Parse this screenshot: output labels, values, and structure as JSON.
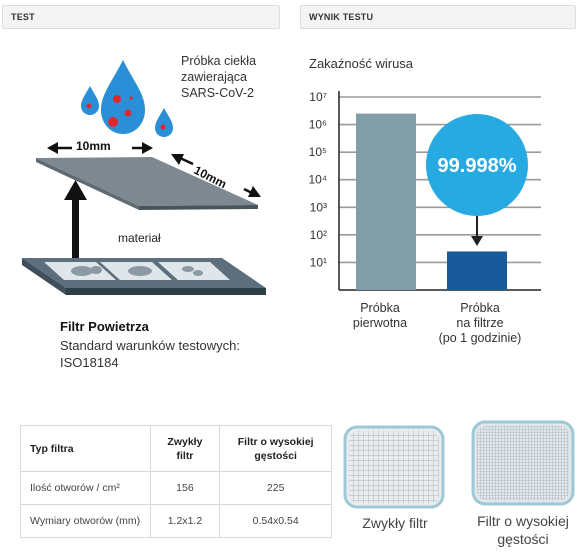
{
  "headers": {
    "test": "TEST",
    "result": "WYNIK TESTU"
  },
  "test_diagram": {
    "sample_label": [
      "Próbka ciekła",
      "zawierająca",
      "SARS-CoV-2"
    ],
    "dim_a": "10mm",
    "dim_b": "10mm",
    "material_label": "materiał",
    "filter_title": "Filtr Powietrza",
    "filter_standard_line1": "Standard warunków testowych:",
    "filter_standard_line2": "ISO18184"
  },
  "chart_data": {
    "type": "bar",
    "title": "Zakaźność wirusa",
    "y_scale": "log10",
    "ylim": [
      1,
      10000000
    ],
    "ytick_labels": [
      "10⁷",
      "10⁶",
      "10⁵",
      "10⁴",
      "10³",
      "10²",
      "10¹"
    ],
    "categories": [
      [
        "Próbka",
        "pierwotna"
      ],
      [
        "Próbka",
        "na filtrze",
        "(po 1 godzinie)"
      ]
    ],
    "values": [
      2500000,
      25
    ],
    "bar_colors": [
      "#7f9ea8",
      "#1a5a9a"
    ],
    "annotation": "99.998%",
    "annotation_color": "#27aae1",
    "grid": true
  },
  "spec_table": {
    "headers": [
      "Typ filtra",
      "Zwykły filtr",
      "Filtr o wysokiej gęstości"
    ],
    "rows": [
      [
        "Ilość otworów / cm²",
        "156",
        "225"
      ],
      [
        "Wymiary otworów (mm)",
        "1.2x1.2",
        "0.54x0.54"
      ]
    ]
  },
  "mesh_images": [
    {
      "label": [
        "Zwykły filtr"
      ],
      "density": "regular"
    },
    {
      "label": [
        "Filtr o wysokiej",
        "gęstości"
      ],
      "density": "high"
    }
  ]
}
